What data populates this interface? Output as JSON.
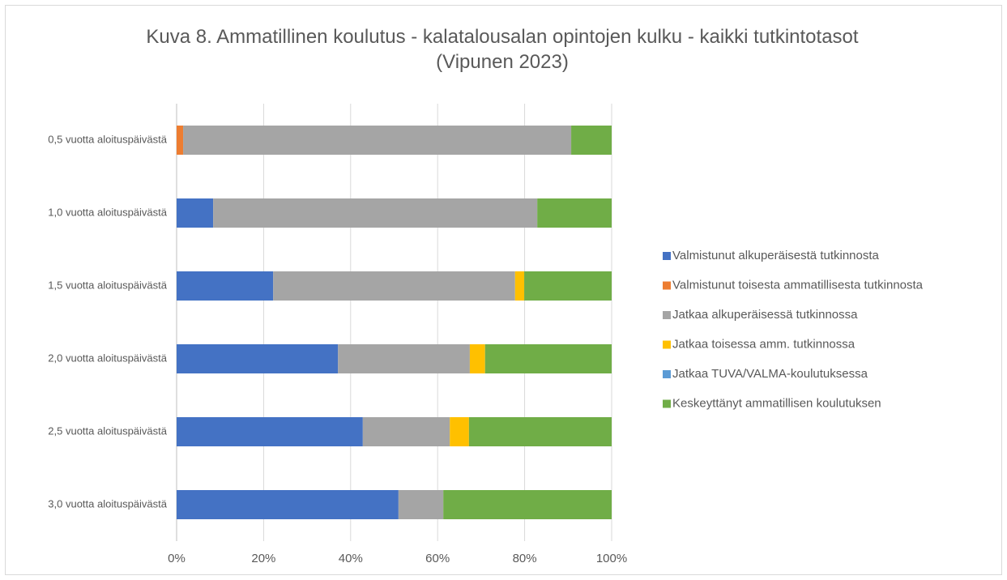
{
  "chart_data": {
    "type": "stacked_barh",
    "title": "Kuva 8. Ammatillinen koulutus - kalatalousalan opintojen kulku - kaikki tutkintotasot (Vipunen 2023)",
    "categories": [
      "0,5 vuotta aloituspäivästä",
      "1,0 vuotta aloituspäivästä",
      "1,5 vuotta aloituspäivästä",
      "2,0 vuotta aloituspäivästä",
      "2,5 vuotta aloituspäivästä",
      "3,0 vuotta aloituspäivästä"
    ],
    "series": [
      {
        "name": "Valmistunut alkuperäisestä tutkinnosta",
        "color": "#4472c4",
        "values": [
          0,
          8.4,
          22.2,
          37.1,
          42.8,
          51.0
        ]
      },
      {
        "name": "Valmistunut toisesta ammatillisesta tutkinnosta",
        "color": "#ed7d31",
        "values": [
          1.5,
          0,
          0,
          0,
          0,
          0
        ]
      },
      {
        "name": "Jatkaa alkuperäisessä tutkinnossa",
        "color": "#a5a5a5",
        "values": [
          89.2,
          74.5,
          55.6,
          30.3,
          20.0,
          10.3
        ]
      },
      {
        "name": "Jatkaa toisessa amm. tutkinnossa",
        "color": "#ffc000",
        "values": [
          0,
          0,
          2.1,
          3.5,
          4.4,
          0
        ]
      },
      {
        "name": "Jatkaa TUVA/VALMA-koulutuksessa",
        "color": "#5b9bd5",
        "values": [
          0,
          0,
          0,
          0,
          0,
          0
        ]
      },
      {
        "name": "Keskeyttänyt ammatillisen koulutuksen",
        "color": "#70ad47",
        "values": [
          9.3,
          17.1,
          20.1,
          29.1,
          32.8,
          38.7
        ]
      }
    ],
    "xlim": [
      0,
      100
    ],
    "xticks": [
      {
        "value": 0,
        "label": "0%"
      },
      {
        "value": 20,
        "label": "20%"
      },
      {
        "value": 40,
        "label": "40%"
      },
      {
        "value": 60,
        "label": "60%"
      },
      {
        "value": 80,
        "label": "80%"
      },
      {
        "value": 100,
        "label": "100%"
      }
    ],
    "grid": true,
    "legend": "right"
  }
}
